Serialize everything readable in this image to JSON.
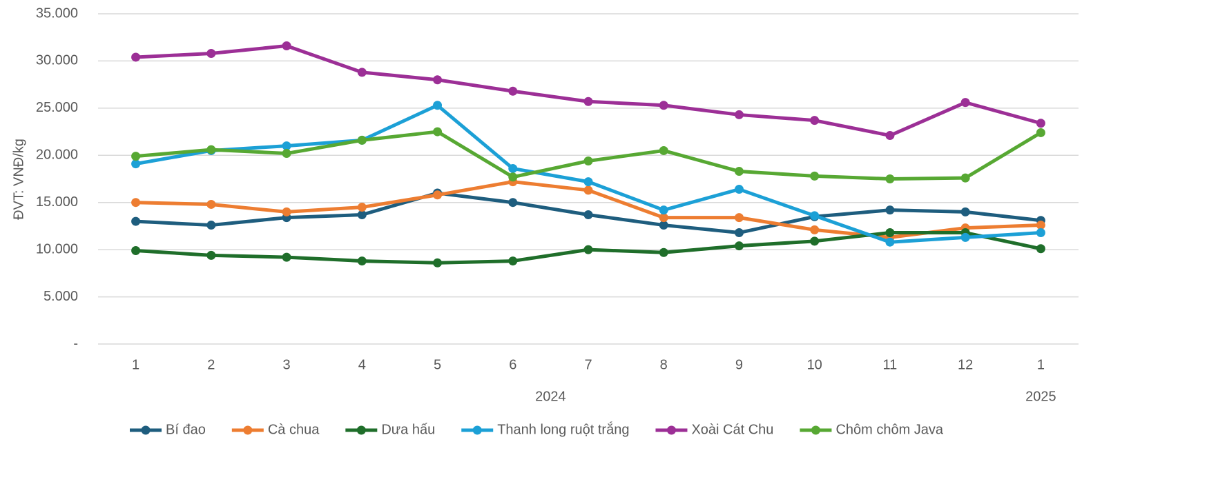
{
  "chart_data": {
    "type": "line",
    "y_axis_label": "ĐVT: VNĐ/kg",
    "categories": [
      "1",
      "2",
      "3",
      "4",
      "5",
      "6",
      "7",
      "8",
      "9",
      "10",
      "11",
      "12",
      "1"
    ],
    "x_groups": [
      {
        "label": "2024",
        "count": 12
      },
      {
        "label": "2025",
        "count": 1
      }
    ],
    "ylim": [
      0,
      35000
    ],
    "yticks": [
      {
        "value": 0,
        "label": "-"
      },
      {
        "value": 5000,
        "label": "5.000"
      },
      {
        "value": 10000,
        "label": "10.000"
      },
      {
        "value": 15000,
        "label": "15.000"
      },
      {
        "value": 20000,
        "label": "20.000"
      },
      {
        "value": 25000,
        "label": "25.000"
      },
      {
        "value": 30000,
        "label": "30.000"
      },
      {
        "value": 35000,
        "label": "35.000"
      }
    ],
    "grid": true,
    "legend": "bottom",
    "series": [
      {
        "name": "Bí đao",
        "color": "#1e5d7e",
        "values": [
          13000,
          12600,
          13400,
          13700,
          16000,
          15000,
          13700,
          12600,
          11800,
          13500,
          14200,
          14000,
          13100
        ]
      },
      {
        "name": "Cà chua",
        "color": "#ed7d31",
        "values": [
          15000,
          14800,
          14000,
          14500,
          15800,
          17200,
          16300,
          13400,
          13400,
          12100,
          11300,
          12300,
          12600
        ]
      },
      {
        "name": "Dưa hấu",
        "color": "#1f6e2a",
        "values": [
          9900,
          9400,
          9200,
          8800,
          8600,
          8800,
          10000,
          9700,
          10400,
          10900,
          11800,
          11800,
          10100
        ]
      },
      {
        "name": "Thanh long ruột trắng",
        "color": "#1ca0d6",
        "values": [
          19100,
          20500,
          21000,
          21600,
          25300,
          18600,
          17200,
          14200,
          16400,
          13600,
          10800,
          11300,
          11800
        ]
      },
      {
        "name": "Xoài Cát Chu",
        "color": "#9c2f96",
        "values": [
          30400,
          30800,
          31600,
          28800,
          28000,
          26800,
          25700,
          25300,
          24300,
          23700,
          22100,
          25600,
          23400
        ]
      },
      {
        "name": "Chôm chôm Java",
        "color": "#57a833",
        "values": [
          19900,
          20600,
          20200,
          21600,
          22500,
          17700,
          19400,
          20500,
          18300,
          17800,
          17500,
          17600,
          22400
        ]
      }
    ]
  }
}
